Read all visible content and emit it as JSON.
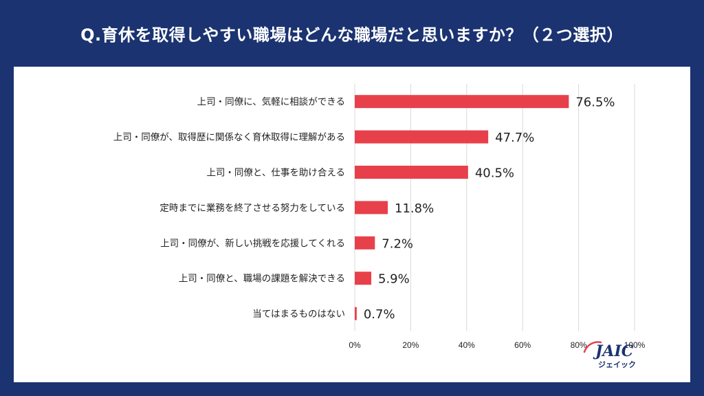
{
  "title": "Q.育休を取得しやすい職場はどんな職場だと思いますか？（２つ選択）",
  "colors": {
    "background": "#1b3370",
    "bar": "#e8404a",
    "grid": "#d9d9d9",
    "text": "#222222"
  },
  "brand": {
    "name": "JAIC",
    "sub": "ジェイック"
  },
  "chart_data": {
    "type": "bar",
    "orientation": "horizontal",
    "categories": [
      "上司・同僚に、気軽に相談ができる",
      "上司・同僚が、取得歴に関係なく育休取得に理解がある",
      "上司・同僚と、仕事を助け合える",
      "定時までに業務を終了させる努力をしている",
      "上司・同僚が、新しい挑戦を応援してくれる",
      "上司・同僚と、職場の課題を解決できる",
      "当てはまるものはない"
    ],
    "values": [
      76.5,
      47.7,
      40.5,
      11.8,
      7.2,
      5.9,
      0.7
    ],
    "value_labels": [
      "76.5%",
      "47.7%",
      "40.5%",
      "11.8%",
      "7.2%",
      "5.9%",
      "0.7%"
    ],
    "xlim": [
      0,
      100
    ],
    "xticks": [
      "0%",
      "20%",
      "40%",
      "60%",
      "80%",
      "100%"
    ],
    "grid": true
  }
}
